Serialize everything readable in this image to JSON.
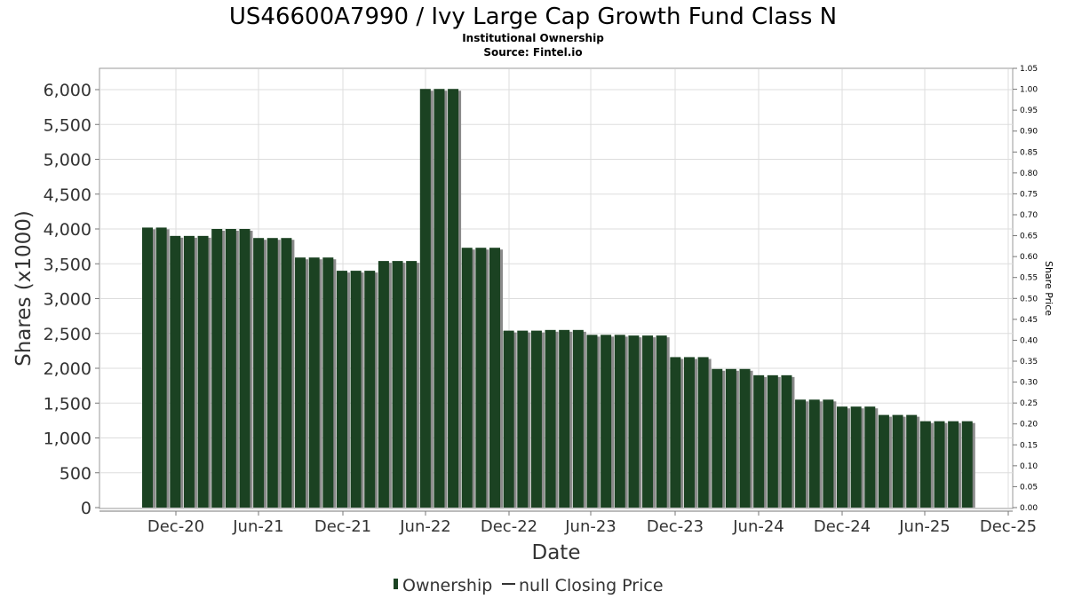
{
  "chart_data": {
    "type": "bar",
    "title": "US46600A7990 / Ivy Large Cap Growth Fund Class N",
    "subtitle": "Institutional Ownership",
    "source": "Source: Fintel.io",
    "xlabel": "Date",
    "ylabel": "Shares (x1000)",
    "y2label": "Share Price",
    "ylim": [
      0,
      6300
    ],
    "y2lim": [
      0,
      1.05
    ],
    "yticks": [
      "0",
      "500",
      "1,000",
      "1,500",
      "2,000",
      "2,500",
      "3,000",
      "3,500",
      "4,000",
      "4,500",
      "5,000",
      "5,500",
      "6,000"
    ],
    "y2ticks": [
      "0.00",
      "0.05",
      "0.10",
      "0.15",
      "0.20",
      "0.25",
      "0.30",
      "0.35",
      "0.40",
      "0.45",
      "0.50",
      "0.55",
      "0.60",
      "0.65",
      "0.70",
      "0.75",
      "0.80",
      "0.85",
      "0.90",
      "0.95",
      "1.00",
      "1.05"
    ],
    "xticks": [
      "Dec-20",
      "Jun-21",
      "Dec-21",
      "Jun-22",
      "Dec-22",
      "Jun-23",
      "Dec-23",
      "Jun-24",
      "Dec-24",
      "Jun-25",
      "Dec-25"
    ],
    "grid": true,
    "legend_position": "bottom",
    "colors": {
      "bar": "#1b4222",
      "bar_shadow": "#8a8a8a",
      "grid": "#dddddd",
      "plot_border": "#999999"
    },
    "series": [
      {
        "name": "Ownership",
        "values": [
          4020,
          4020,
          3900,
          3900,
          3900,
          4000,
          4000,
          4000,
          3870,
          3870,
          3870,
          3590,
          3590,
          3590,
          3400,
          3400,
          3400,
          3540,
          3540,
          3540,
          6010,
          6010,
          6010,
          3730,
          3730,
          3730,
          2540,
          2540,
          2540,
          2550,
          2550,
          2550,
          2480,
          2480,
          2480,
          2470,
          2470,
          2470,
          2160,
          2160,
          2160,
          1990,
          1990,
          1990,
          1900,
          1900,
          1900,
          1550,
          1550,
          1550,
          1450,
          1450,
          1450,
          1330,
          1330,
          1330,
          1240,
          1240,
          1240,
          1240
        ]
      }
    ],
    "legend": [
      {
        "name": "Ownership",
        "marker": "bar"
      },
      {
        "name": "null Closing Price",
        "marker": "line"
      }
    ]
  }
}
